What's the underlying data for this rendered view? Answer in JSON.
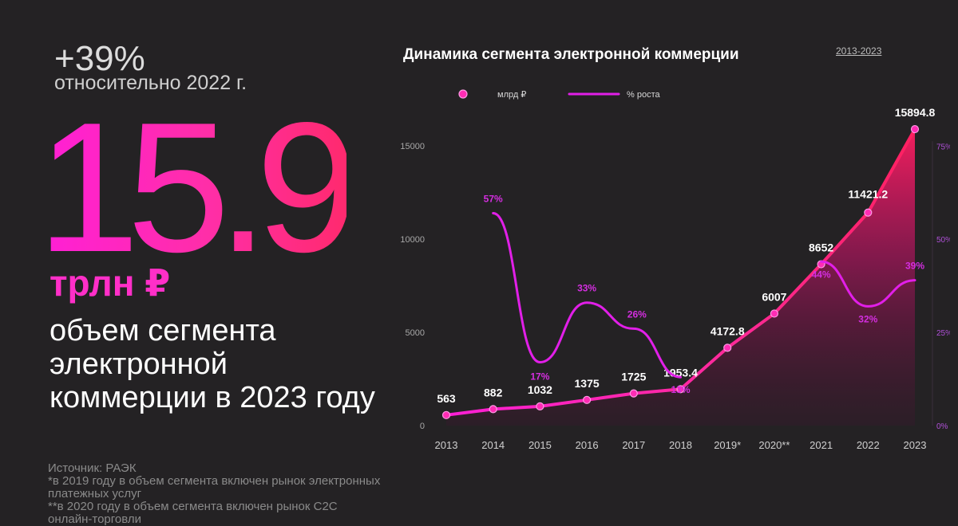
{
  "headline": {
    "growth": "+39%",
    "growth_caption": "относительно 2022 г.",
    "value": "15.9",
    "unit": "трлн ₽",
    "description": "объем сегмента электронной коммерции в 2023 году"
  },
  "footnotes": {
    "source": "Источник: РАЭК",
    "note1": "*в 2019 году в объем сегмента включен рынок электронных платежных услуг",
    "note2": "**в 2020 году в объем сегмента включен рынок C2C онлайн-торговли"
  },
  "colors": {
    "background": "#242224",
    "volume_line": "#ff1fa8",
    "growth_line": "#e11fe8",
    "accent_pink": "#ff2fc8"
  },
  "chart_data": {
    "type": "line",
    "title": "Динамика сегмента электронной коммерции",
    "subtitle": "2013-2023",
    "categories": [
      "2013",
      "2014",
      "2015",
      "2016",
      "2017",
      "2018",
      "2019*",
      "2020**",
      "2021",
      "2022",
      "2023"
    ],
    "series": [
      {
        "name": "млрд ₽",
        "axis": "left",
        "values": [
          563,
          882,
          1032,
          1375,
          1725,
          1953.4,
          4172.8,
          6007,
          8652,
          11421.2,
          15894.8
        ],
        "labels": [
          "563",
          "882",
          "1032",
          "1375",
          "1725",
          "1953.4",
          "4172.8",
          "6007",
          "8652",
          "11421.2",
          "15894.8"
        ]
      },
      {
        "name": "% роста",
        "axis": "right",
        "segments": [
          {
            "categories": [
              "2014",
              "2015",
              "2016",
              "2017",
              "2018"
            ],
            "values": [
              57,
              17,
              33,
              26,
              13
            ]
          },
          {
            "categories": [
              "2021",
              "2022",
              "2023"
            ],
            "values": [
              44,
              32,
              39
            ]
          }
        ],
        "labels": [
          {
            "category": "2014",
            "text": "57%"
          },
          {
            "category": "2015",
            "text": "17%"
          },
          {
            "category": "2016",
            "text": "33%"
          },
          {
            "category": "2017",
            "text": "26%"
          },
          {
            "category": "2018",
            "text": "13%"
          },
          {
            "category": "2021",
            "text": "44%"
          },
          {
            "category": "2022",
            "text": "32%"
          },
          {
            "category": "2023",
            "text": "39%"
          }
        ]
      }
    ],
    "y_left": {
      "range": [
        0,
        17000
      ],
      "ticks": [
        "0",
        "5000",
        "10000",
        "15000"
      ]
    },
    "y_right": {
      "range": [
        0,
        85
      ],
      "ticks": [
        "0%",
        "25%",
        "50%",
        "75%"
      ]
    },
    "legend": "top-left",
    "grid": false
  }
}
